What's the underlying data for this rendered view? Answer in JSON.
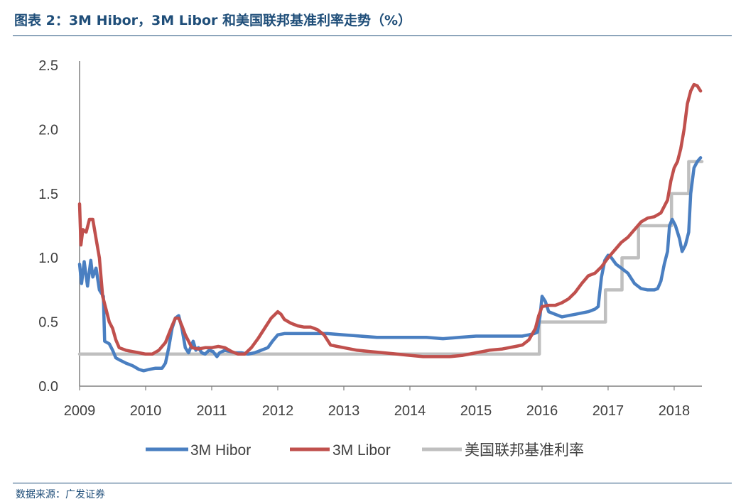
{
  "header": {
    "title": "图表 2：3M Hibor，3M Libor 和美国联邦基准利率走势（%）"
  },
  "footer": {
    "source": "数据来源：广发证券"
  },
  "chart_data": {
    "type": "line",
    "title": "图表 2：3M Hibor，3M Libor 和美国联邦基准利率走势（%）",
    "xlabel": "",
    "ylabel": "",
    "xlim": [
      2009.0,
      2018.42
    ],
    "ylim": [
      0,
      2.5
    ],
    "x_ticks": [
      "2009",
      "2010",
      "2011",
      "2012",
      "2013",
      "2014",
      "2015",
      "2016",
      "2017",
      "2018"
    ],
    "y_ticks": [
      "0.0",
      "0.5",
      "1.0",
      "1.5",
      "2.0",
      "2.5"
    ],
    "grid": false,
    "legend": "bottom",
    "series": [
      {
        "name": "3M Hibor",
        "color": "#4a7fc1",
        "points": [
          [
            2009.0,
            0.95
          ],
          [
            2009.03,
            0.8
          ],
          [
            2009.07,
            0.97
          ],
          [
            2009.12,
            0.78
          ],
          [
            2009.17,
            0.98
          ],
          [
            2009.2,
            0.85
          ],
          [
            2009.25,
            0.92
          ],
          [
            2009.3,
            0.75
          ],
          [
            2009.36,
            0.7
          ],
          [
            2009.38,
            0.35
          ],
          [
            2009.45,
            0.33
          ],
          [
            2009.5,
            0.28
          ],
          [
            2009.55,
            0.22
          ],
          [
            2009.62,
            0.2
          ],
          [
            2009.7,
            0.18
          ],
          [
            2009.8,
            0.16
          ],
          [
            2009.9,
            0.13
          ],
          [
            2009.97,
            0.12
          ],
          [
            2010.05,
            0.13
          ],
          [
            2010.15,
            0.14
          ],
          [
            2010.25,
            0.14
          ],
          [
            2010.3,
            0.18
          ],
          [
            2010.35,
            0.3
          ],
          [
            2010.4,
            0.45
          ],
          [
            2010.45,
            0.53
          ],
          [
            2010.5,
            0.55
          ],
          [
            2010.55,
            0.45
          ],
          [
            2010.6,
            0.3
          ],
          [
            2010.65,
            0.26
          ],
          [
            2010.72,
            0.35
          ],
          [
            2010.76,
            0.28
          ],
          [
            2010.8,
            0.3
          ],
          [
            2010.85,
            0.26
          ],
          [
            2010.9,
            0.25
          ],
          [
            2010.96,
            0.28
          ],
          [
            2011.02,
            0.27
          ],
          [
            2011.08,
            0.23
          ],
          [
            2011.12,
            0.26
          ],
          [
            2011.2,
            0.28
          ],
          [
            2011.28,
            0.27
          ],
          [
            2011.35,
            0.26
          ],
          [
            2011.45,
            0.26
          ],
          [
            2011.55,
            0.25
          ],
          [
            2011.65,
            0.26
          ],
          [
            2011.75,
            0.28
          ],
          [
            2011.85,
            0.3
          ],
          [
            2011.92,
            0.35
          ],
          [
            2012.0,
            0.4
          ],
          [
            2012.1,
            0.41
          ],
          [
            2012.25,
            0.41
          ],
          [
            2012.5,
            0.41
          ],
          [
            2012.75,
            0.41
          ],
          [
            2013.0,
            0.4
          ],
          [
            2013.25,
            0.39
          ],
          [
            2013.5,
            0.38
          ],
          [
            2013.75,
            0.38
          ],
          [
            2014.0,
            0.38
          ],
          [
            2014.25,
            0.38
          ],
          [
            2014.5,
            0.37
          ],
          [
            2014.75,
            0.38
          ],
          [
            2015.0,
            0.39
          ],
          [
            2015.25,
            0.39
          ],
          [
            2015.5,
            0.39
          ],
          [
            2015.7,
            0.39
          ],
          [
            2015.8,
            0.4
          ],
          [
            2015.88,
            0.41
          ],
          [
            2015.93,
            0.42
          ],
          [
            2015.97,
            0.55
          ],
          [
            2016.0,
            0.7
          ],
          [
            2016.05,
            0.66
          ],
          [
            2016.1,
            0.58
          ],
          [
            2016.2,
            0.56
          ],
          [
            2016.3,
            0.54
          ],
          [
            2016.4,
            0.55
          ],
          [
            2016.5,
            0.56
          ],
          [
            2016.6,
            0.57
          ],
          [
            2016.7,
            0.58
          ],
          [
            2016.8,
            0.6
          ],
          [
            2016.85,
            0.62
          ],
          [
            2016.9,
            0.85
          ],
          [
            2016.95,
            0.98
          ],
          [
            2017.0,
            1.02
          ],
          [
            2017.05,
            1.0
          ],
          [
            2017.12,
            0.95
          ],
          [
            2017.2,
            0.92
          ],
          [
            2017.3,
            0.88
          ],
          [
            2017.4,
            0.8
          ],
          [
            2017.5,
            0.76
          ],
          [
            2017.6,
            0.75
          ],
          [
            2017.7,
            0.75
          ],
          [
            2017.75,
            0.76
          ],
          [
            2017.8,
            0.82
          ],
          [
            2017.85,
            0.95
          ],
          [
            2017.9,
            1.05
          ],
          [
            2017.93,
            1.25
          ],
          [
            2017.97,
            1.3
          ],
          [
            2018.02,
            1.25
          ],
          [
            2018.08,
            1.15
          ],
          [
            2018.12,
            1.05
          ],
          [
            2018.17,
            1.1
          ],
          [
            2018.22,
            1.2
          ],
          [
            2018.25,
            1.5
          ],
          [
            2018.3,
            1.7
          ],
          [
            2018.35,
            1.75
          ],
          [
            2018.4,
            1.78
          ]
        ]
      },
      {
        "name": "3M Libor",
        "color": "#c0504d",
        "points": [
          [
            2009.0,
            1.42
          ],
          [
            2009.02,
            1.1
          ],
          [
            2009.05,
            1.22
          ],
          [
            2009.1,
            1.2
          ],
          [
            2009.15,
            1.3
          ],
          [
            2009.2,
            1.3
          ],
          [
            2009.25,
            1.15
          ],
          [
            2009.3,
            1.0
          ],
          [
            2009.35,
            0.7
          ],
          [
            2009.4,
            0.6
          ],
          [
            2009.45,
            0.5
          ],
          [
            2009.5,
            0.45
          ],
          [
            2009.55,
            0.36
          ],
          [
            2009.6,
            0.3
          ],
          [
            2009.7,
            0.28
          ],
          [
            2009.8,
            0.27
          ],
          [
            2009.9,
            0.26
          ],
          [
            2010.0,
            0.25
          ],
          [
            2010.1,
            0.25
          ],
          [
            2010.2,
            0.28
          ],
          [
            2010.3,
            0.34
          ],
          [
            2010.4,
            0.47
          ],
          [
            2010.45,
            0.53
          ],
          [
            2010.5,
            0.53
          ],
          [
            2010.55,
            0.47
          ],
          [
            2010.6,
            0.4
          ],
          [
            2010.7,
            0.3
          ],
          [
            2010.8,
            0.29
          ],
          [
            2010.9,
            0.3
          ],
          [
            2011.0,
            0.3
          ],
          [
            2011.1,
            0.31
          ],
          [
            2011.2,
            0.3
          ],
          [
            2011.3,
            0.27
          ],
          [
            2011.4,
            0.25
          ],
          [
            2011.5,
            0.25
          ],
          [
            2011.6,
            0.3
          ],
          [
            2011.7,
            0.37
          ],
          [
            2011.8,
            0.45
          ],
          [
            2011.9,
            0.53
          ],
          [
            2012.0,
            0.58
          ],
          [
            2012.05,
            0.56
          ],
          [
            2012.1,
            0.52
          ],
          [
            2012.2,
            0.49
          ],
          [
            2012.3,
            0.47
          ],
          [
            2012.4,
            0.46
          ],
          [
            2012.5,
            0.46
          ],
          [
            2012.6,
            0.44
          ],
          [
            2012.7,
            0.4
          ],
          [
            2012.8,
            0.32
          ],
          [
            2012.9,
            0.31
          ],
          [
            2013.0,
            0.3
          ],
          [
            2013.2,
            0.28
          ],
          [
            2013.4,
            0.27
          ],
          [
            2013.6,
            0.26
          ],
          [
            2013.8,
            0.25
          ],
          [
            2014.0,
            0.24
          ],
          [
            2014.2,
            0.23
          ],
          [
            2014.4,
            0.23
          ],
          [
            2014.6,
            0.23
          ],
          [
            2014.8,
            0.24
          ],
          [
            2015.0,
            0.26
          ],
          [
            2015.2,
            0.28
          ],
          [
            2015.4,
            0.29
          ],
          [
            2015.6,
            0.31
          ],
          [
            2015.7,
            0.32
          ],
          [
            2015.8,
            0.36
          ],
          [
            2015.9,
            0.45
          ],
          [
            2015.95,
            0.55
          ],
          [
            2016.0,
            0.62
          ],
          [
            2016.1,
            0.63
          ],
          [
            2016.2,
            0.63
          ],
          [
            2016.3,
            0.65
          ],
          [
            2016.4,
            0.68
          ],
          [
            2016.5,
            0.73
          ],
          [
            2016.6,
            0.8
          ],
          [
            2016.7,
            0.86
          ],
          [
            2016.8,
            0.88
          ],
          [
            2016.9,
            0.93
          ],
          [
            2017.0,
            1.0
          ],
          [
            2017.1,
            1.06
          ],
          [
            2017.2,
            1.12
          ],
          [
            2017.3,
            1.16
          ],
          [
            2017.4,
            1.22
          ],
          [
            2017.5,
            1.28
          ],
          [
            2017.6,
            1.31
          ],
          [
            2017.7,
            1.32
          ],
          [
            2017.8,
            1.35
          ],
          [
            2017.9,
            1.45
          ],
          [
            2017.95,
            1.6
          ],
          [
            2018.0,
            1.7
          ],
          [
            2018.05,
            1.75
          ],
          [
            2018.1,
            1.85
          ],
          [
            2018.15,
            2.0
          ],
          [
            2018.2,
            2.2
          ],
          [
            2018.25,
            2.3
          ],
          [
            2018.3,
            2.35
          ],
          [
            2018.35,
            2.34
          ],
          [
            2018.4,
            2.3
          ]
        ]
      },
      {
        "name": "美国联邦基准利率",
        "color": "#bfbfbf",
        "points": [
          [
            2009.0,
            0.25
          ],
          [
            2015.96,
            0.25
          ],
          [
            2015.96,
            0.5
          ],
          [
            2016.96,
            0.5
          ],
          [
            2016.96,
            0.75
          ],
          [
            2017.21,
            0.75
          ],
          [
            2017.21,
            1.0
          ],
          [
            2017.46,
            1.0
          ],
          [
            2017.46,
            1.25
          ],
          [
            2017.96,
            1.25
          ],
          [
            2017.96,
            1.5
          ],
          [
            2018.22,
            1.5
          ],
          [
            2018.22,
            1.75
          ],
          [
            2018.42,
            1.75
          ]
        ]
      }
    ]
  }
}
